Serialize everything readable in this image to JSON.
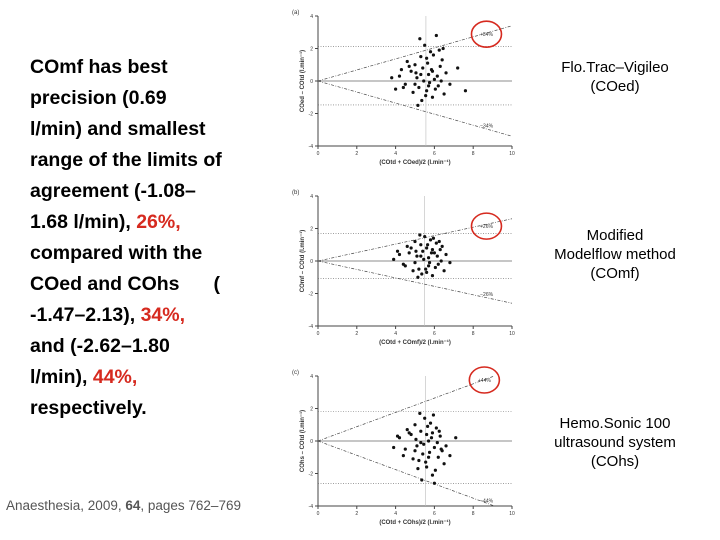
{
  "text_block": {
    "lines": [
      "COmf has best",
      "precision (0.69",
      "l/min) and smallest",
      "range of the limits of",
      "agreement (-1.08–",
      "1.68 l/min), ",
      "compared with the",
      "COed and COhs",
      "(",
      "-1.47–2.13), ",
      "and (-2.62–1.80",
      "l/min), ",
      "respectively."
    ],
    "highlights": [
      "26%,",
      "34%,",
      "44%,"
    ],
    "highlight_color": "#d62a1f"
  },
  "citation": {
    "journal": "Anaesthesia, 2009, ",
    "volume": "64",
    "pages": ", pages 762–769"
  },
  "method_labels": [
    [
      "Flo.Trac–Vigileo",
      "(COed)"
    ],
    [
      "Modified",
      "Modelflow method",
      "(COmf)"
    ],
    [
      "Hemo.Sonic 100",
      "ultrasound system",
      "(COhs)"
    ]
  ],
  "chart_data": [
    {
      "type": "scatter",
      "panel": "(a)",
      "xlabel": "(COtd + COed)/2 (l.min⁻¹)",
      "ylabel": "COed – COtd (l.min⁻¹)",
      "xlim": [
        0,
        10
      ],
      "ylim": [
        -4,
        4
      ],
      "xticks": [
        0,
        2,
        4,
        6,
        8,
        10
      ],
      "yticks": [
        -4,
        -2,
        0,
        2,
        4
      ],
      "limits": {
        "upper": 2.13,
        "lower": -1.47
      },
      "wedge": {
        "upper_pct": "+34%",
        "lower_pct": "−34%",
        "slope": 0.34
      },
      "highlight_circle_color": "#d62a1f",
      "points": [
        [
          4.2,
          0.3
        ],
        [
          4.5,
          -0.2
        ],
        [
          4.8,
          0.6
        ],
        [
          5.0,
          1.0
        ],
        [
          5.1,
          0.2
        ],
        [
          5.2,
          -0.4
        ],
        [
          5.3,
          1.5
        ],
        [
          5.4,
          0.8
        ],
        [
          5.5,
          2.2
        ],
        [
          5.6,
          -0.6
        ],
        [
          5.7,
          0.4
        ],
        [
          5.8,
          1.8
        ],
        [
          5.9,
          -1.0
        ],
        [
          6.0,
          0.1
        ],
        [
          6.1,
          2.8
        ],
        [
          6.2,
          -0.3
        ],
        [
          6.3,
          0.9
        ],
        [
          6.4,
          1.3
        ],
        [
          6.5,
          -0.8
        ],
        [
          4.6,
          1.2
        ],
        [
          4.9,
          -0.7
        ],
        [
          5.05,
          0.5
        ],
        [
          5.35,
          -1.2
        ],
        [
          5.45,
          0.0
        ],
        [
          5.65,
          1.1
        ],
        [
          5.75,
          -0.1
        ],
        [
          5.85,
          0.7
        ],
        [
          5.95,
          1.6
        ],
        [
          6.05,
          -0.5
        ],
        [
          6.15,
          0.3
        ],
        [
          4.4,
          -0.4
        ],
        [
          4.7,
          0.9
        ],
        [
          5.25,
          2.6
        ],
        [
          5.55,
          -0.9
        ],
        [
          6.25,
          1.9
        ],
        [
          6.6,
          0.5
        ],
        [
          6.8,
          -0.2
        ],
        [
          7.2,
          0.8
        ],
        [
          7.6,
          -0.6
        ],
        [
          3.8,
          0.2
        ],
        [
          4.0,
          -0.5
        ],
        [
          4.3,
          0.7
        ],
        [
          5.15,
          -1.5
        ],
        [
          5.6,
          1.4
        ],
        [
          6.35,
          0.0
        ],
        [
          6.45,
          2.0
        ],
        [
          5.0,
          -0.2
        ],
        [
          5.3,
          0.4
        ],
        [
          5.7,
          -0.3
        ],
        [
          5.9,
          0.6
        ]
      ]
    },
    {
      "type": "scatter",
      "panel": "(b)",
      "xlabel": "(COtd + COmf)/2 (l.min⁻¹)",
      "ylabel": "COmf – COtd (l.min⁻¹)",
      "xlim": [
        0,
        10
      ],
      "ylim": [
        -4,
        4
      ],
      "xticks": [
        0,
        2,
        4,
        6,
        8,
        10
      ],
      "yticks": [
        -4,
        -2,
        0,
        2,
        4
      ],
      "limits": {
        "upper": 1.68,
        "lower": -1.08
      },
      "wedge": {
        "upper_pct": "+26%",
        "lower_pct": "−26%",
        "slope": 0.26
      },
      "highlight_circle_color": "#d62a1f",
      "points": [
        [
          4.2,
          0.4
        ],
        [
          4.5,
          -0.3
        ],
        [
          4.8,
          0.8
        ],
        [
          5.0,
          1.2
        ],
        [
          5.1,
          0.3
        ],
        [
          5.2,
          -0.5
        ],
        [
          5.3,
          1.0
        ],
        [
          5.4,
          0.6
        ],
        [
          5.5,
          1.5
        ],
        [
          5.6,
          -0.7
        ],
        [
          5.7,
          0.2
        ],
        [
          5.8,
          1.3
        ],
        [
          5.9,
          -0.9
        ],
        [
          6.0,
          0.5
        ],
        [
          6.1,
          1.1
        ],
        [
          6.2,
          -0.2
        ],
        [
          6.3,
          0.7
        ],
        [
          6.4,
          0.9
        ],
        [
          6.5,
          -0.6
        ],
        [
          4.6,
          0.9
        ],
        [
          4.9,
          -0.6
        ],
        [
          5.05,
          0.6
        ],
        [
          5.35,
          -0.8
        ],
        [
          5.45,
          0.1
        ],
        [
          5.65,
          1.0
        ],
        [
          5.75,
          -0.1
        ],
        [
          5.85,
          0.5
        ],
        [
          5.95,
          1.4
        ],
        [
          6.05,
          -0.4
        ],
        [
          6.15,
          0.3
        ],
        [
          4.4,
          -0.2
        ],
        [
          4.7,
          0.5
        ],
        [
          5.25,
          1.6
        ],
        [
          5.55,
          -0.5
        ],
        [
          6.25,
          1.2
        ],
        [
          6.6,
          0.4
        ],
        [
          6.8,
          -0.1
        ],
        [
          3.9,
          0.1
        ],
        [
          4.1,
          0.6
        ],
        [
          5.15,
          -1.0
        ],
        [
          5.6,
          0.8
        ],
        [
          6.35,
          0.0
        ],
        [
          5.0,
          -0.1
        ],
        [
          5.3,
          0.3
        ],
        [
          5.7,
          -0.3
        ],
        [
          5.9,
          0.7
        ]
      ]
    },
    {
      "type": "scatter",
      "panel": "(c)",
      "xlabel": "(COtd + COhs)/2 (l.min⁻¹)",
      "ylabel": "COhs – COtd (l.min⁻¹)",
      "xlim": [
        0,
        10
      ],
      "ylim": [
        -4,
        4
      ],
      "xticks": [
        0,
        2,
        4,
        6,
        8,
        10
      ],
      "yticks": [
        -4,
        -2,
        0,
        2,
        4
      ],
      "limits": {
        "upper": 1.8,
        "lower": -2.62
      },
      "wedge": {
        "upper_pct": "+44%",
        "lower_pct": "−44%",
        "slope": 0.44
      },
      "highlight_circle_color": "#d62a1f",
      "points": [
        [
          4.2,
          0.2
        ],
        [
          4.5,
          -0.5
        ],
        [
          4.8,
          0.4
        ],
        [
          5.0,
          1.0
        ],
        [
          5.1,
          -0.3
        ],
        [
          5.2,
          -1.2
        ],
        [
          5.3,
          0.6
        ],
        [
          5.4,
          -0.8
        ],
        [
          5.5,
          1.4
        ],
        [
          5.6,
          -1.6
        ],
        [
          5.7,
          0.0
        ],
        [
          5.8,
          1.1
        ],
        [
          5.9,
          -2.1
        ],
        [
          6.0,
          -0.4
        ],
        [
          6.1,
          0.8
        ],
        [
          6.2,
          -1.0
        ],
        [
          6.3,
          0.3
        ],
        [
          6.4,
          -0.6
        ],
        [
          6.5,
          -1.4
        ],
        [
          4.6,
          0.7
        ],
        [
          4.9,
          -1.1
        ],
        [
          5.05,
          0.1
        ],
        [
          5.35,
          -2.4
        ],
        [
          5.45,
          -0.2
        ],
        [
          5.65,
          0.9
        ],
        [
          5.75,
          -0.7
        ],
        [
          5.85,
          0.2
        ],
        [
          5.95,
          1.6
        ],
        [
          6.05,
          -1.8
        ],
        [
          6.15,
          -0.1
        ],
        [
          4.4,
          -0.9
        ],
        [
          4.7,
          0.5
        ],
        [
          5.25,
          1.7
        ],
        [
          5.55,
          -1.3
        ],
        [
          6.25,
          0.6
        ],
        [
          6.6,
          -0.3
        ],
        [
          6.8,
          -0.9
        ],
        [
          7.1,
          0.2
        ],
        [
          3.9,
          -0.4
        ],
        [
          4.1,
          0.3
        ],
        [
          5.15,
          -1.7
        ],
        [
          5.6,
          0.4
        ],
        [
          6.35,
          -0.5
        ],
        [
          5.0,
          -0.6
        ],
        [
          5.3,
          -0.1
        ],
        [
          5.7,
          -1.0
        ],
        [
          5.9,
          0.5
        ],
        [
          6.0,
          -2.6
        ]
      ]
    }
  ]
}
